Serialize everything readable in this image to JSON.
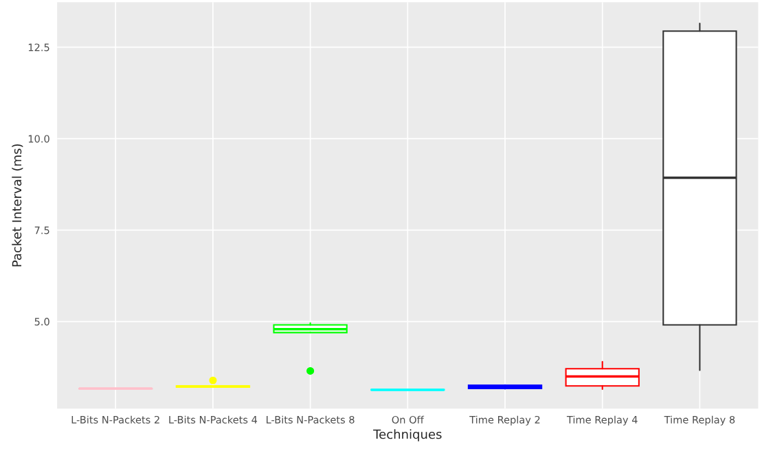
{
  "chart_data": {
    "type": "box",
    "xlabel": "Techniques",
    "ylabel": "Packet Interval (ms)",
    "categories": [
      "L-Bits N-Packets 2",
      "L-Bits N-Packets 4",
      "L-Bits N-Packets 8",
      "On Off",
      "Time Replay 2",
      "Time Replay 4",
      "Time Replay 8"
    ],
    "colors": [
      "#ffc0cb",
      "#ffff00",
      "#00ff00",
      "#00ffff",
      "#0000ff",
      "#ff0000",
      "#333333"
    ],
    "boxes": [
      {
        "low": 3.16,
        "q1": 3.16,
        "median": 3.17,
        "q3": 3.17,
        "high": 3.17
      },
      {
        "low": 3.21,
        "q1": 3.21,
        "median": 3.22,
        "q3": 3.24,
        "high": 3.24,
        "outliers": [
          3.39
        ]
      },
      {
        "low": 4.7,
        "q1": 4.7,
        "median": 4.79,
        "q3": 4.91,
        "high": 4.96,
        "outliers": [
          3.65
        ]
      },
      {
        "low": 3.13,
        "q1": 3.13,
        "median": 3.13,
        "q3": 3.14,
        "high": 3.14
      },
      {
        "low": 3.16,
        "q1": 3.17,
        "median": 3.22,
        "q3": 3.26,
        "high": 3.26
      },
      {
        "low": 3.15,
        "q1": 3.24,
        "median": 3.5,
        "q3": 3.71,
        "high": 3.9
      },
      {
        "low": 3.67,
        "q1": 4.91,
        "median": 8.93,
        "q3": 12.94,
        "high": 13.15
      }
    ],
    "ylim": [
      2.62,
      13.73
    ],
    "yticks": [
      {
        "value": 5,
        "label": "5.0"
      },
      {
        "value": 7.5,
        "label": "7.5"
      },
      {
        "value": 10,
        "label": "10.0"
      },
      {
        "value": 12.5,
        "label": "12.5"
      }
    ],
    "grid": true
  }
}
